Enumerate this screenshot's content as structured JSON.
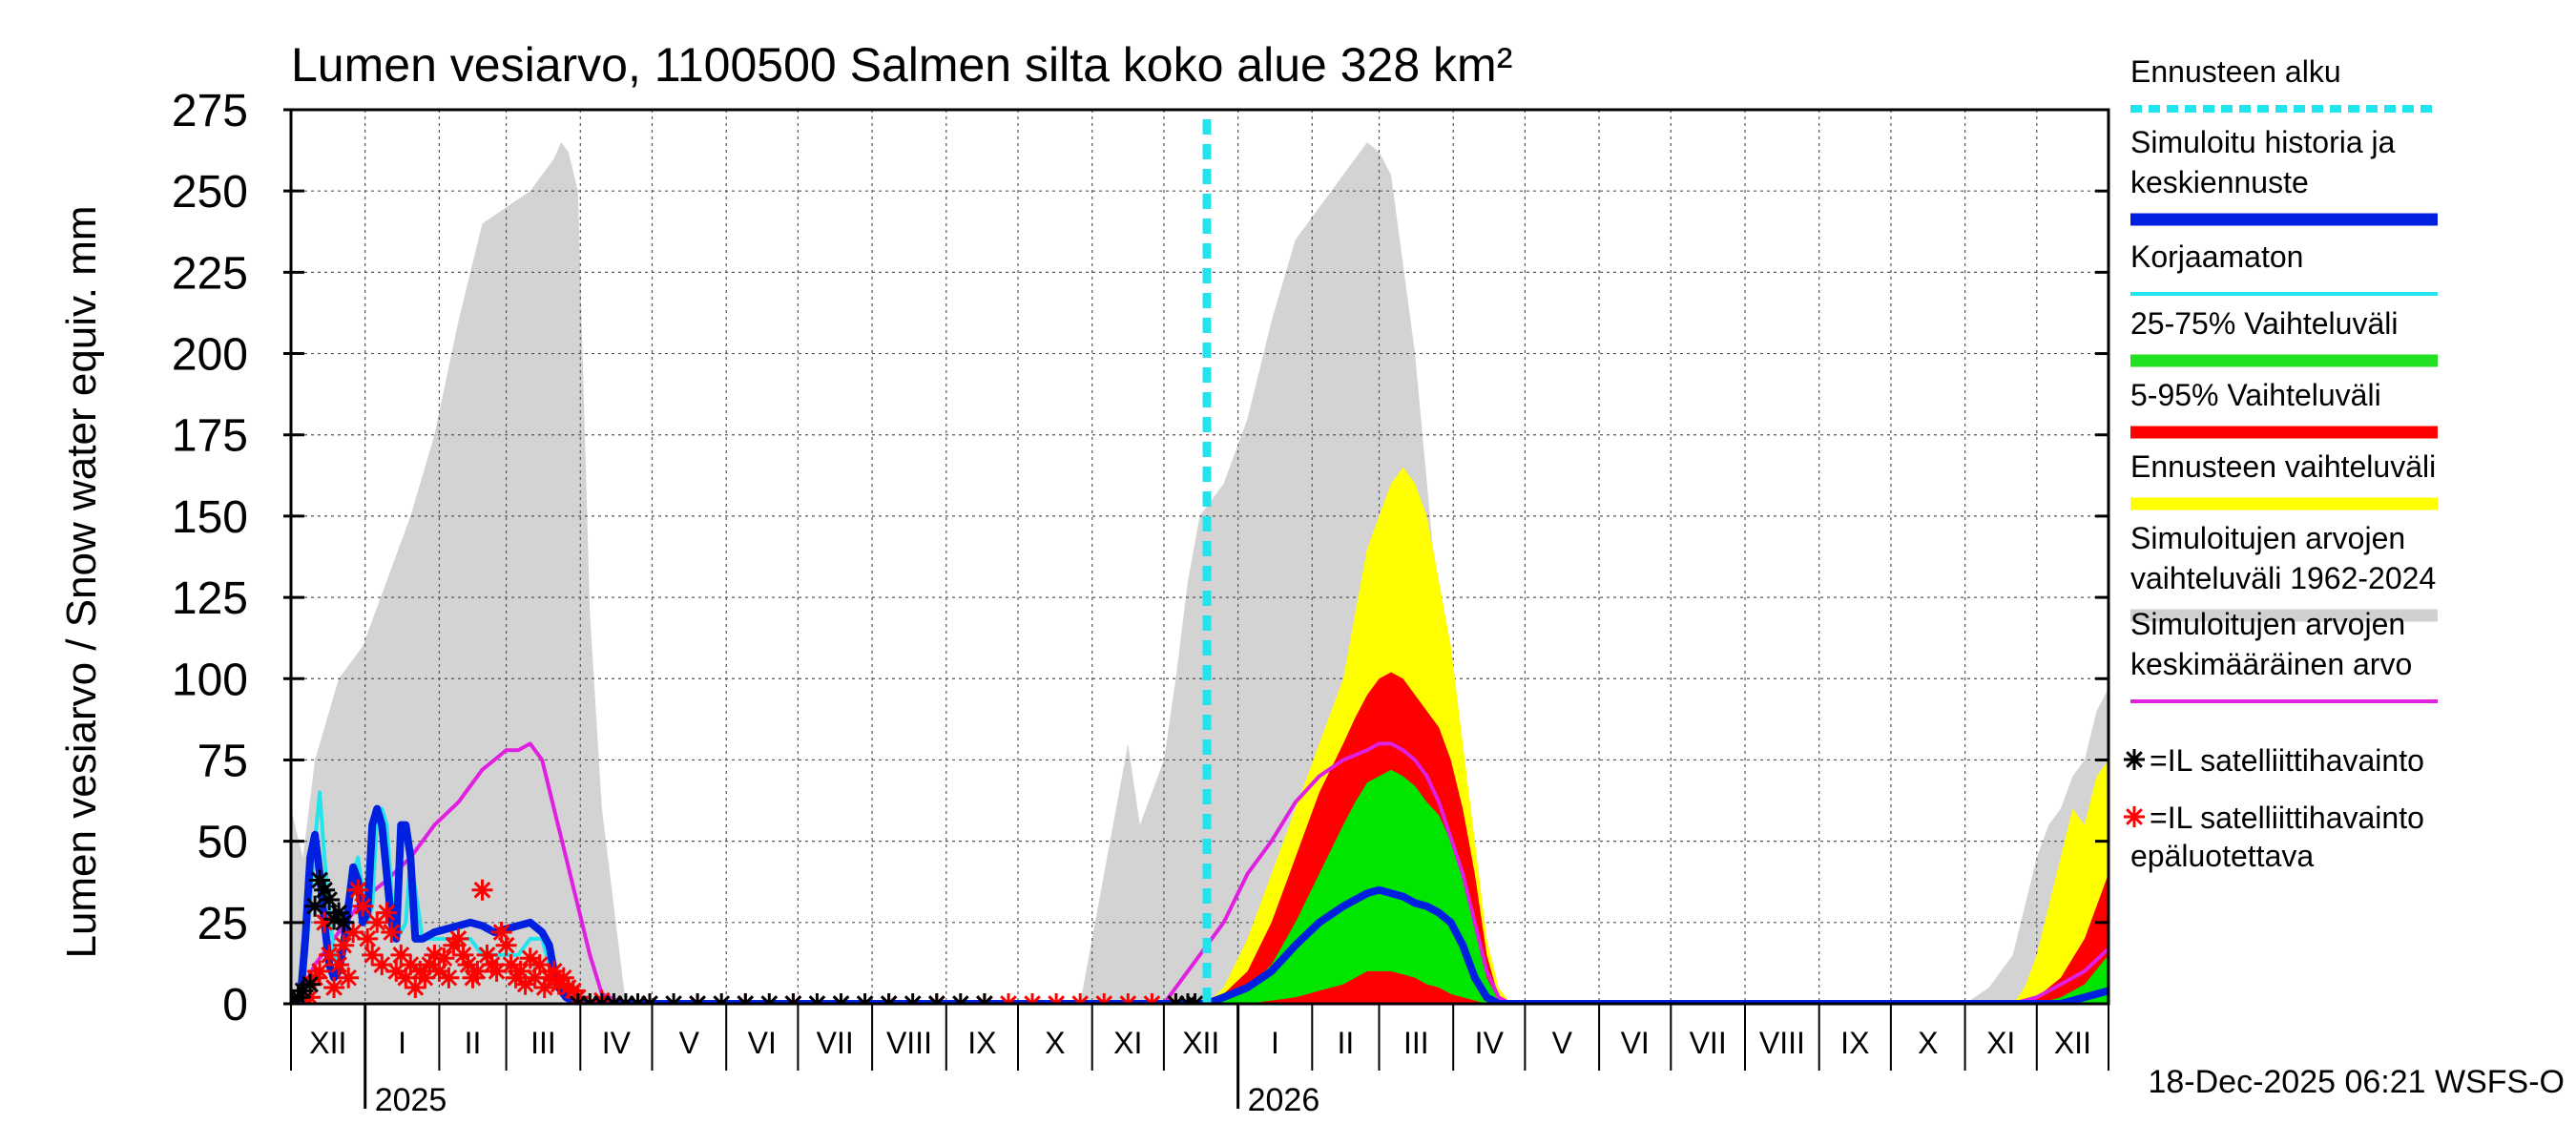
{
  "chart_data": {
    "type": "area",
    "title": "Lumen vesiarvo, 1100500 Salmen silta koko alue 328 km²",
    "ylabel": "Lumen vesiarvo / Snow water equiv.    mm",
    "ylim": [
      0,
      275
    ],
    "yticks": [
      0,
      25,
      50,
      75,
      100,
      125,
      150,
      175,
      200,
      225,
      250,
      275
    ],
    "xlim_days": [
      0,
      760
    ],
    "months": [
      {
        "label": "XII",
        "start": 0,
        "end": 31
      },
      {
        "label": "I",
        "start": 31,
        "end": 62
      },
      {
        "label": "II",
        "start": 62,
        "end": 90
      },
      {
        "label": "III",
        "start": 90,
        "end": 121
      },
      {
        "label": "IV",
        "start": 121,
        "end": 151
      },
      {
        "label": "V",
        "start": 151,
        "end": 182
      },
      {
        "label": "VI",
        "start": 182,
        "end": 212
      },
      {
        "label": "VII",
        "start": 212,
        "end": 243
      },
      {
        "label": "VIII",
        "start": 243,
        "end": 274
      },
      {
        "label": "IX",
        "start": 274,
        "end": 304
      },
      {
        "label": "X",
        "start": 304,
        "end": 335
      },
      {
        "label": "XI",
        "start": 335,
        "end": 365
      },
      {
        "label": "XII",
        "start": 365,
        "end": 396
      },
      {
        "label": "I",
        "start": 396,
        "end": 427
      },
      {
        "label": "II",
        "start": 427,
        "end": 455
      },
      {
        "label": "III",
        "start": 455,
        "end": 486
      },
      {
        "label": "IV",
        "start": 486,
        "end": 516
      },
      {
        "label": "V",
        "start": 516,
        "end": 547
      },
      {
        "label": "VI",
        "start": 547,
        "end": 577
      },
      {
        "label": "VII",
        "start": 577,
        "end": 608
      },
      {
        "label": "VIII",
        "start": 608,
        "end": 639
      },
      {
        "label": "IX",
        "start": 639,
        "end": 669
      },
      {
        "label": "X",
        "start": 669,
        "end": 700
      },
      {
        "label": "XI",
        "start": 700,
        "end": 730
      },
      {
        "label": "XII",
        "start": 730,
        "end": 760
      }
    ],
    "years": [
      {
        "label": "2025",
        "day": 31
      },
      {
        "label": "2026",
        "day": 396
      }
    ],
    "forecast_start_day": 383,
    "series": {
      "hist_range_1962_2024": {
        "x": [
          0,
          5,
          10,
          20,
          30,
          40,
          50,
          60,
          70,
          80,
          90,
          100,
          105,
          110,
          113,
          116,
          120,
          125,
          130,
          140,
          150,
          160,
          170,
          180,
          190,
          200,
          220,
          240,
          260,
          280,
          300,
          320,
          330,
          335,
          340,
          345,
          350,
          355,
          360,
          365,
          370,
          375,
          380,
          390,
          400,
          410,
          420,
          425,
          430,
          435,
          440,
          445,
          450,
          455,
          460,
          470,
          480,
          485,
          490,
          495,
          500,
          510,
          520,
          540,
          560,
          580,
          600,
          620,
          640,
          660,
          680,
          700,
          710,
          720,
          725,
          730,
          735,
          740,
          745,
          750,
          755,
          760
        ],
        "upper": [
          60,
          45,
          75,
          100,
          110,
          130,
          150,
          175,
          210,
          240,
          245,
          250,
          255,
          260,
          265,
          262,
          250,
          120,
          60,
          0,
          0,
          0,
          0,
          0,
          0,
          0,
          0,
          0,
          0,
          0,
          0,
          0,
          0,
          20,
          40,
          60,
          80,
          55,
          65,
          75,
          100,
          130,
          150,
          160,
          180,
          210,
          235,
          240,
          245,
          250,
          255,
          260,
          265,
          262,
          255,
          200,
          120,
          70,
          30,
          5,
          0,
          0,
          0,
          0,
          0,
          0,
          0,
          0,
          0,
          0,
          0,
          0,
          5,
          15,
          30,
          45,
          55,
          60,
          70,
          75,
          90,
          97
        ],
        "lower": [
          0,
          0,
          0,
          0,
          0,
          0,
          0,
          0,
          0,
          0,
          0,
          0,
          0,
          0,
          0,
          0,
          0,
          0,
          0,
          0,
          0,
          0,
          0,
          0,
          0,
          0,
          0,
          0,
          0,
          0,
          0,
          0,
          0,
          0,
          0,
          0,
          0,
          0,
          0,
          0,
          0,
          0,
          0,
          0,
          0,
          0,
          0,
          0,
          0,
          0,
          0,
          0,
          0,
          0,
          0,
          0,
          0,
          0,
          0,
          0,
          0,
          0,
          0,
          0,
          0,
          0,
          0,
          0,
          0,
          0,
          0,
          0,
          0,
          0,
          0,
          0,
          0,
          0,
          0,
          0,
          0,
          0
        ]
      },
      "forecast_range": {
        "x": [
          383,
          390,
          400,
          410,
          420,
          430,
          440,
          445,
          450,
          455,
          460,
          465,
          470,
          475,
          480,
          485,
          490,
          495,
          500,
          505,
          510,
          520,
          540,
          560,
          580,
          600,
          620,
          640,
          660,
          680,
          700,
          710,
          720,
          725,
          730,
          735,
          740,
          745,
          750,
          755,
          760
        ],
        "upper": [
          0,
          5,
          20,
          40,
          60,
          80,
          100,
          120,
          140,
          150,
          160,
          165,
          160,
          150,
          130,
          110,
          80,
          50,
          20,
          5,
          0,
          0,
          0,
          0,
          0,
          0,
          0,
          0,
          0,
          0,
          0,
          0,
          0,
          5,
          15,
          30,
          45,
          60,
          55,
          70,
          75
        ],
        "lower": [
          0,
          0,
          0,
          0,
          0,
          0,
          0,
          0,
          0,
          0,
          0,
          0,
          0,
          0,
          0,
          0,
          0,
          0,
          0,
          0,
          0,
          0,
          0,
          0,
          0,
          0,
          0,
          0,
          0,
          0,
          0,
          0,
          0,
          0,
          0,
          0,
          0,
          0,
          0,
          0,
          0
        ]
      },
      "range_5_95": {
        "x": [
          383,
          390,
          400,
          410,
          420,
          430,
          440,
          445,
          450,
          455,
          460,
          465,
          470,
          475,
          480,
          485,
          490,
          495,
          500,
          505,
          510,
          700,
          710,
          720,
          730,
          740,
          750,
          760
        ],
        "upper": [
          0,
          3,
          10,
          25,
          45,
          65,
          80,
          88,
          95,
          100,
          102,
          100,
          95,
          90,
          85,
          75,
          60,
          40,
          15,
          2,
          0,
          0,
          0,
          0,
          2,
          8,
          20,
          40
        ],
        "lower": [
          0,
          0,
          0,
          0,
          0,
          0,
          0,
          0,
          0,
          0,
          0,
          0,
          0,
          0,
          0,
          0,
          0,
          0,
          0,
          0,
          0,
          0,
          0,
          0,
          0,
          0,
          0,
          0
        ]
      },
      "range_25_75": {
        "x": [
          383,
          390,
          400,
          410,
          420,
          430,
          440,
          445,
          450,
          455,
          460,
          465,
          470,
          475,
          480,
          485,
          490,
          495,
          500,
          505,
          510,
          700,
          720,
          730,
          740,
          750,
          760
        ],
        "upper": [
          0,
          1,
          5,
          12,
          25,
          40,
          55,
          62,
          68,
          70,
          72,
          70,
          67,
          62,
          58,
          50,
          40,
          25,
          8,
          1,
          0,
          0,
          0,
          0,
          2,
          6,
          15
        ],
        "lower": [
          0,
          0,
          0,
          1,
          2,
          4,
          6,
          8,
          10,
          10,
          10,
          9,
          8,
          6,
          5,
          3,
          2,
          1,
          0,
          0,
          0,
          0,
          0,
          0,
          0,
          0,
          0
        ]
      },
      "hist_mean": {
        "x": [
          0,
          5,
          10,
          20,
          30,
          40,
          50,
          60,
          70,
          80,
          85,
          90,
          95,
          100,
          105,
          110,
          115,
          120,
          125,
          130,
          140,
          150,
          200,
          300,
          365,
          370,
          375,
          380,
          385,
          390,
          400,
          410,
          420,
          430,
          440,
          450,
          455,
          460,
          465,
          470,
          475,
          480,
          490,
          500,
          505,
          510,
          600,
          700,
          720,
          730,
          740,
          750,
          760
        ],
        "y": [
          0,
          5,
          12,
          22,
          32,
          38,
          45,
          55,
          62,
          72,
          75,
          78,
          78,
          80,
          75,
          60,
          45,
          30,
          15,
          3,
          0,
          0,
          0,
          0,
          0,
          5,
          10,
          15,
          20,
          25,
          40,
          50,
          62,
          70,
          75,
          78,
          80,
          80,
          78,
          75,
          70,
          62,
          40,
          10,
          2,
          0,
          0,
          0,
          0,
          2,
          6,
          10,
          17
        ]
      },
      "uncorrected": {
        "x": [
          0,
          5,
          8,
          10,
          12,
          14,
          16,
          18,
          20,
          22,
          24,
          26,
          28,
          30,
          32,
          34,
          36,
          38,
          40,
          42,
          44,
          46,
          48,
          50,
          55,
          60,
          65,
          70,
          75,
          80,
          85,
          90,
          95,
          100,
          105,
          108,
          110
        ],
        "y": [
          0,
          5,
          30,
          50,
          65,
          45,
          30,
          15,
          10,
          15,
          25,
          40,
          45,
          35,
          25,
          30,
          58,
          60,
          55,
          35,
          20,
          22,
          25,
          45,
          20,
          20,
          20,
          20,
          20,
          15,
          15,
          15,
          15,
          20,
          20,
          12,
          5
        ]
      },
      "simulated": {
        "x": [
          0,
          4,
          6,
          8,
          10,
          12,
          14,
          16,
          18,
          20,
          22,
          24,
          26,
          28,
          30,
          32,
          34,
          36,
          38,
          40,
          42,
          44,
          46,
          48,
          50,
          52,
          55,
          60,
          65,
          70,
          75,
          80,
          85,
          90,
          95,
          100,
          105,
          108,
          110,
          112,
          115,
          120,
          130,
          140,
          200,
          300,
          383,
          390,
          400,
          410,
          420,
          430,
          440,
          450,
          455,
          460,
          465,
          470,
          475,
          480,
          485,
          490,
          495,
          500,
          505,
          510,
          600,
          700,
          720,
          740,
          750,
          760
        ],
        "y": [
          0,
          2,
          20,
          45,
          52,
          40,
          25,
          12,
          8,
          10,
          18,
          30,
          42,
          38,
          25,
          28,
          55,
          60,
          55,
          40,
          25,
          20,
          55,
          55,
          45,
          20,
          20,
          22,
          23,
          24,
          25,
          24,
          22,
          23,
          24,
          25,
          22,
          18,
          10,
          5,
          2,
          0,
          0,
          0,
          0,
          0,
          0,
          2,
          5,
          10,
          18,
          25,
          30,
          34,
          35,
          34,
          33,
          31,
          30,
          28,
          25,
          18,
          8,
          2,
          0,
          0,
          0,
          0,
          0,
          0,
          2,
          4
        ]
      },
      "sat_obs": {
        "x": [
          1,
          3,
          5,
          8,
          10,
          12,
          14,
          16,
          18,
          20,
          22,
          120,
          125,
          130,
          135,
          140,
          145,
          150,
          160,
          170,
          180,
          190,
          200,
          210,
          220,
          230,
          240,
          250,
          260,
          270,
          280,
          290,
          370,
          375,
          378
        ],
        "y": [
          0,
          2,
          4,
          6,
          30,
          38,
          35,
          32,
          26,
          28,
          25,
          0,
          0,
          0,
          0,
          0,
          0,
          0,
          0,
          0,
          0,
          0,
          0,
          0,
          0,
          0,
          0,
          0,
          0,
          0,
          0,
          0,
          0,
          0,
          0
        ]
      },
      "sat_obs_unreliable": {
        "x": [
          6,
          8,
          10,
          12,
          14,
          16,
          18,
          20,
          22,
          24,
          26,
          28,
          30,
          32,
          34,
          36,
          38,
          40,
          42,
          44,
          46,
          48,
          50,
          52,
          54,
          56,
          58,
          60,
          62,
          64,
          66,
          68,
          70,
          72,
          74,
          76,
          78,
          80,
          82,
          84,
          86,
          88,
          90,
          92,
          94,
          96,
          98,
          100,
          102,
          104,
          106,
          108,
          110,
          112,
          114,
          116,
          118,
          120,
          130,
          150,
          170,
          190,
          210,
          230,
          250,
          270,
          290,
          300,
          310,
          320,
          330,
          340,
          350,
          360,
          370
        ],
        "y": [
          0,
          2,
          8,
          10,
          25,
          15,
          5,
          12,
          18,
          8,
          22,
          35,
          30,
          20,
          15,
          25,
          12,
          28,
          22,
          10,
          15,
          8,
          12,
          5,
          10,
          8,
          12,
          15,
          10,
          14,
          8,
          18,
          20,
          15,
          12,
          8,
          10,
          35,
          15,
          12,
          10,
          22,
          18,
          12,
          8,
          10,
          6,
          14,
          8,
          12,
          5,
          8,
          10,
          6,
          8,
          5,
          4,
          2,
          1,
          0,
          0,
          0,
          0,
          0,
          0,
          0,
          0,
          0,
          0,
          0,
          0,
          0,
          0,
          0,
          0
        ]
      }
    }
  },
  "legend": [
    {
      "label": "Ennusteen alku",
      "color": "#22e4ec",
      "style": "dashed"
    },
    {
      "label": "Simuloitu historia ja keskiennuste",
      "color": "#0020e0",
      "style": "thick"
    },
    {
      "label": "Korjaamaton",
      "color": "#22e4ec",
      "style": "thin"
    },
    {
      "label": "25-75% Vaihteluväli",
      "color": "#22e022",
      "style": "thick"
    },
    {
      "label": "5-95% Vaihteluväli",
      "color": "#ff0000",
      "style": "thick"
    },
    {
      "label": "Ennusteen vaihteluväli",
      "color": "#ffff00",
      "style": "thick"
    },
    {
      "label": "Simuloitujen arvojen vaihteluväli 1962-2024",
      "color": "#d0d0d0",
      "style": "thick"
    },
    {
      "label": "Simuloitujen arvojen keskimääräinen arvo",
      "color": "#e020e0",
      "style": "thin"
    },
    {
      "label": "=IL satelliittihavainto",
      "color": "#000000",
      "style": "star"
    },
    {
      "label": "=IL satelliittihavainto epäluotettava",
      "color": "#ff0000",
      "style": "star"
    }
  ],
  "footer": "18-Dec-2025 06:21 WSFS-O",
  "colors": {
    "hist_range": "#d3d3d3",
    "forecast_range": "#ffff00",
    "range_5_95": "#ff0000",
    "range_25_75": "#00e600",
    "hist_mean": "#e020e0",
    "uncorrected": "#22e4ec",
    "simulated": "#0020e0",
    "forecast_line": "#22e4ec",
    "grid": "#555555"
  }
}
